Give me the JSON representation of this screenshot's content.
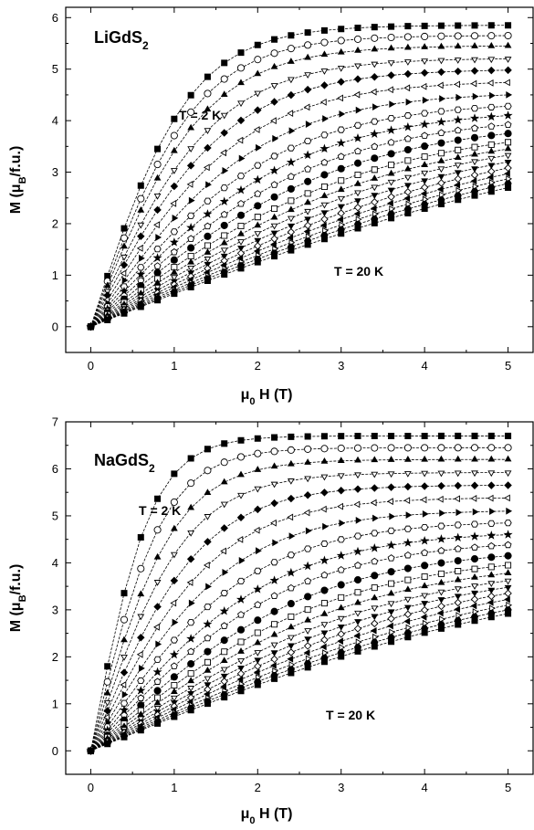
{
  "chart_data": [
    {
      "type": "scatter",
      "title": "LiGdS",
      "title_sub": "2",
      "xlabel_base": "μ",
      "xlabel_sub": "0",
      "xlabel_rest": "H (T)",
      "ylabel_pre": "M (μ",
      "ylabel_sub": "B",
      "ylabel_post": "/f.u.)",
      "xlim": [
        -0.3,
        5.3
      ],
      "ylim": [
        -0.5,
        6.2
      ],
      "xticks": [
        0,
        1,
        2,
        3,
        4,
        5
      ],
      "yticks": [
        0,
        1,
        2,
        3,
        4,
        5,
        6
      ],
      "annotations": [
        "T = 2 K",
        "T = 20 K"
      ],
      "x": [
        0,
        0.2,
        0.4,
        0.6,
        0.8,
        1.0,
        1.2,
        1.4,
        1.6,
        1.8,
        2.0,
        2.2,
        2.4,
        2.6,
        2.8,
        3.0,
        3.2,
        3.4,
        3.6,
        3.8,
        4.0,
        4.2,
        4.4,
        4.6,
        4.8,
        5.0
      ],
      "series_endpoints": [
        5.85,
        5.65,
        5.45,
        5.2,
        4.98,
        4.74,
        4.5,
        4.28,
        4.1,
        3.92,
        3.75,
        3.58,
        3.45,
        3.33,
        3.2,
        3.08,
        2.97,
        2.87,
        2.78,
        2.7
      ],
      "series_curvature": [
        2.6,
        2.8,
        3.0,
        3.3,
        3.6,
        4.0,
        4.4,
        4.9,
        5.4,
        6.0,
        6.6,
        7.3,
        8.0,
        8.8,
        9.6,
        10.4,
        11.3,
        12.2,
        13.1,
        14.0
      ],
      "markers": [
        "square-filled",
        "circle-open",
        "triangle-up-filled",
        "triangle-down-open",
        "diamond-filled",
        "triangle-left-open",
        "triangle-right-filled",
        "hexagon-open",
        "star-filled",
        "pentagon-open",
        "circle-filled",
        "square-open",
        "triangle-up-filled",
        "triangle-down-open",
        "triangle-down-filled",
        "diamond-open",
        "triangle-left-filled",
        "triangle-right-open",
        "hexagon-filled",
        "square-filled"
      ]
    },
    {
      "type": "scatter",
      "title": "NaGdS",
      "title_sub": "2",
      "xlabel_base": "μ",
      "xlabel_sub": "0",
      "xlabel_rest": "H (T)",
      "ylabel_pre": "M (μ",
      "ylabel_sub": "B",
      "ylabel_post": "/f.u.)",
      "xlim": [
        -0.3,
        5.3
      ],
      "ylim": [
        -0.5,
        7.0
      ],
      "xticks": [
        0,
        1,
        2,
        3,
        4,
        5
      ],
      "yticks": [
        0,
        1,
        2,
        3,
        4,
        5,
        6,
        7
      ],
      "annotations": [
        "T = 2 K",
        "T = 20 K"
      ],
      "x": [
        0,
        0.2,
        0.4,
        0.6,
        0.8,
        1.0,
        1.2,
        1.4,
        1.6,
        1.8,
        2.0,
        2.2,
        2.4,
        2.6,
        2.8,
        3.0,
        3.2,
        3.4,
        3.6,
        3.8,
        4.0,
        4.2,
        4.4,
        4.6,
        4.8,
        5.0
      ],
      "series_endpoints": [
        6.7,
        6.45,
        6.2,
        5.92,
        5.65,
        5.38,
        5.1,
        4.85,
        4.6,
        4.38,
        4.15,
        3.95,
        3.78,
        3.62,
        3.48,
        3.35,
        3.22,
        3.1,
        3.0,
        2.92
      ],
      "series_curvature": [
        1.6,
        1.9,
        2.2,
        2.5,
        2.9,
        3.3,
        3.7,
        4.2,
        4.7,
        5.2,
        5.8,
        6.4,
        7.0,
        7.7,
        8.4,
        9.1,
        9.9,
        10.7,
        11.5,
        12.3
      ],
      "markers": [
        "square-filled",
        "circle-open",
        "triangle-up-filled",
        "triangle-down-open",
        "diamond-filled",
        "triangle-left-open",
        "triangle-right-filled",
        "hexagon-open",
        "star-filled",
        "pentagon-open",
        "circle-filled",
        "square-open",
        "triangle-up-filled",
        "triangle-down-open",
        "triangle-down-filled",
        "diamond-open",
        "triangle-left-filled",
        "triangle-right-open",
        "hexagon-filled",
        "square-filled"
      ]
    }
  ]
}
